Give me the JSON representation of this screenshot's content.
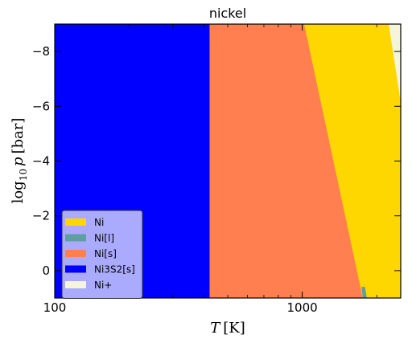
{
  "chart_data": {
    "type": "area",
    "title": "nickel",
    "xlabel": "T [K]",
    "ylabel": "log10 p [bar]",
    "xscale": "log",
    "xlim": [
      100,
      2500
    ],
    "ylim": [
      1,
      -9
    ],
    "x_ticks": [
      {
        "value": 100,
        "label": "100"
      },
      {
        "value": 1000,
        "label": "1000"
      }
    ],
    "y_ticks": [
      {
        "value": -8,
        "label": "−8"
      },
      {
        "value": -6,
        "label": "−6"
      },
      {
        "value": -4,
        "label": "−4"
      },
      {
        "value": -2,
        "label": "−2"
      },
      {
        "value": 0,
        "label": "0"
      }
    ],
    "legend_position": "lower-left",
    "legend": [
      {
        "name": "Ni",
        "color": "#ffd700"
      },
      {
        "name": "Ni[l]",
        "color": "#5f9ea0"
      },
      {
        "name": "Ni[s]",
        "color": "#ff7f50"
      },
      {
        "name": "Ni3S2[s]",
        "color": "#0000ff"
      },
      {
        "name": "Ni+",
        "color": "#f5f5dc"
      }
    ],
    "regions": [
      {
        "name": "Ni3S2[s]",
        "color": "#0000ff",
        "polygon": [
          [
            100,
            -9
          ],
          [
            423,
            -9
          ],
          [
            423,
            1
          ],
          [
            100,
            1
          ]
        ]
      },
      {
        "name": "Ni[s]",
        "color": "#ff7f50",
        "polygon": [
          [
            423,
            -9
          ],
          [
            1020,
            -9
          ],
          [
            1760,
            1
          ],
          [
            423,
            1
          ]
        ]
      },
      {
        "name": "Ni",
        "color": "#ffd700",
        "polygon": [
          [
            1020,
            -9
          ],
          [
            2240,
            -9
          ],
          [
            2500,
            -6.2
          ],
          [
            2500,
            1
          ],
          [
            1820,
            1
          ],
          [
            1760,
            1
          ]
        ]
      },
      {
        "name": "Ni[l]",
        "color": "#5f9ea0",
        "polygon": [
          [
            1740,
            0.6
          ],
          [
            1790,
            0.6
          ],
          [
            1820,
            1
          ],
          [
            1760,
            1
          ]
        ]
      },
      {
        "name": "Ni+",
        "color": "#f5f5dc",
        "polygon": [
          [
            2240,
            -9
          ],
          [
            2500,
            -9
          ],
          [
            2500,
            -6.2
          ]
        ]
      }
    ]
  }
}
